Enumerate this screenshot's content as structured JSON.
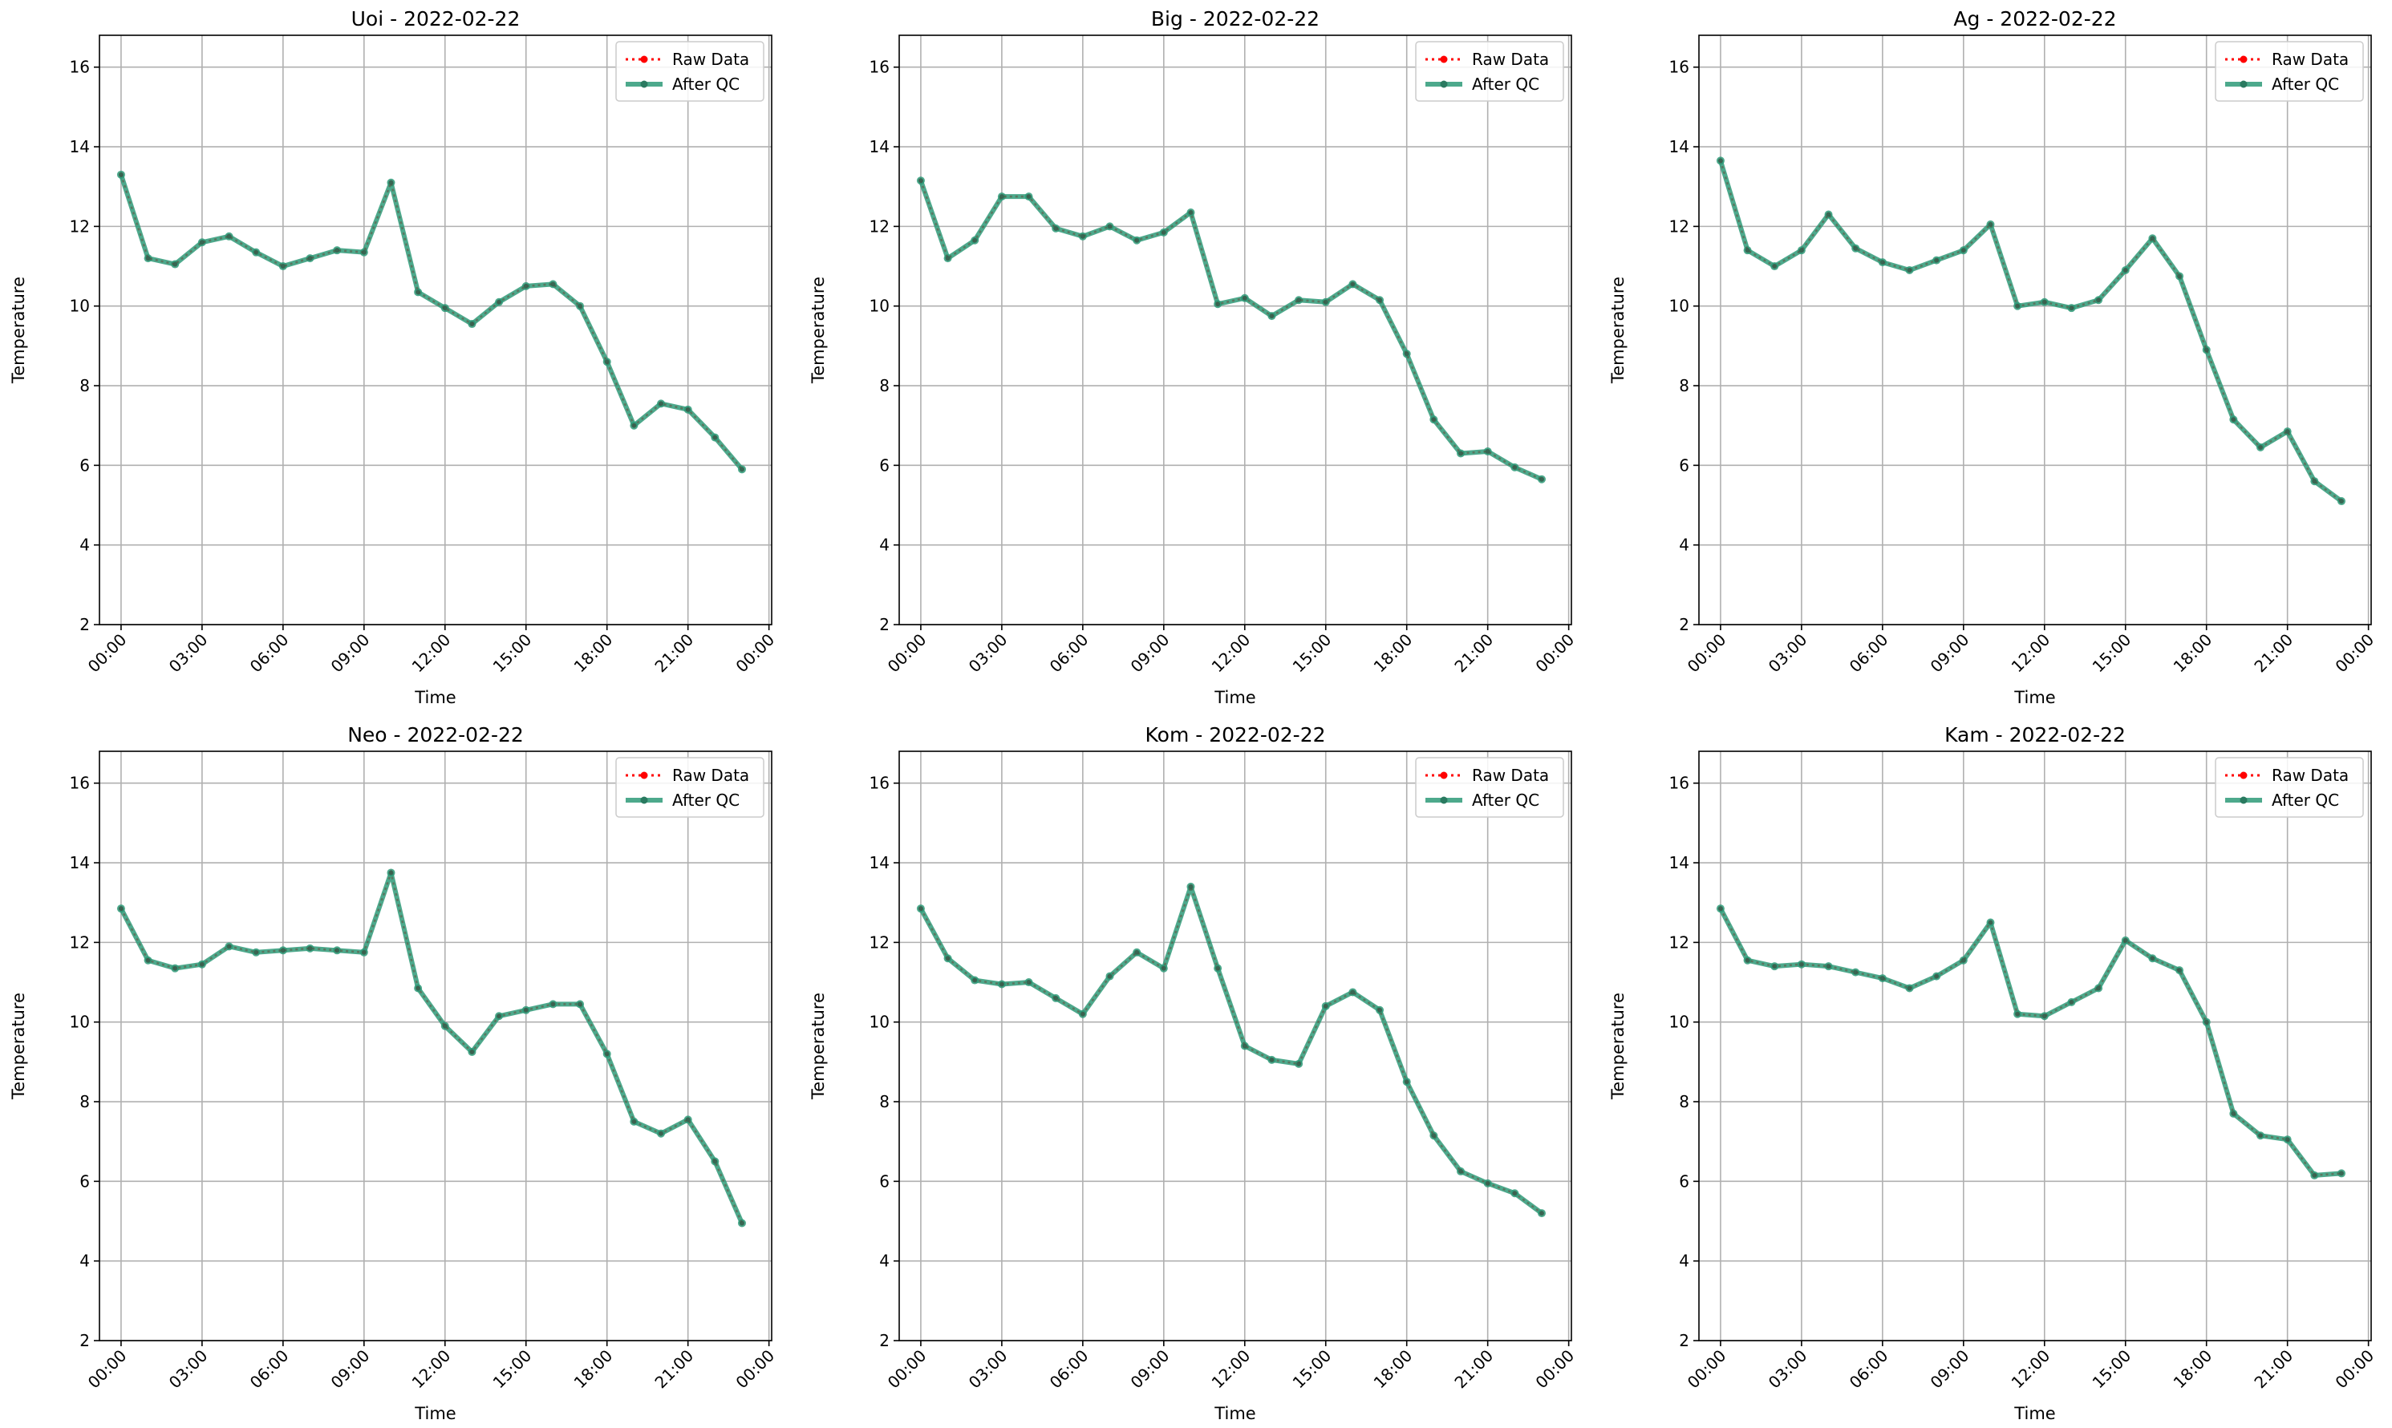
{
  "figure": {
    "background": "#ffffff"
  },
  "colors": {
    "raw": "#ff0000",
    "qc": "#2e9a78",
    "grid": "#b0b0b0",
    "axes": "#000000"
  },
  "chart_data": [
    {
      "type": "line",
      "title": "Uoi - 2022-02-22",
      "xlabel": "Time",
      "ylabel": "Temperature",
      "xticks": [
        "00:00",
        "03:00",
        "06:00",
        "09:00",
        "12:00",
        "15:00",
        "18:00",
        "21:00",
        "00:00"
      ],
      "yticks": [
        "2",
        "4",
        "6",
        "8",
        "10",
        "12",
        "14",
        "16"
      ],
      "ylim": [
        2,
        16.8
      ],
      "xlim_hours": [
        -0.8,
        24.1
      ],
      "grid": true,
      "legend": "top-right",
      "x_hours": [
        0,
        1,
        2,
        3,
        4,
        5,
        6,
        7,
        8,
        9,
        10,
        11,
        12,
        13,
        14,
        15,
        16,
        17,
        18,
        19,
        20,
        21,
        22,
        23
      ],
      "series": [
        {
          "name": "Raw Data",
          "style": "dotted",
          "values": [
            13.3,
            11.2,
            11.05,
            11.6,
            11.75,
            11.35,
            11.0,
            11.2,
            11.4,
            11.35,
            13.1,
            10.35,
            9.95,
            9.55,
            10.1,
            10.5,
            10.55,
            10.0,
            8.6,
            7.0,
            7.55,
            7.4,
            6.7,
            5.9
          ]
        },
        {
          "name": "After QC",
          "style": "solid",
          "values": [
            13.3,
            11.2,
            11.05,
            11.6,
            11.75,
            11.35,
            11.0,
            11.2,
            11.4,
            11.35,
            13.1,
            10.35,
            9.95,
            9.55,
            10.1,
            10.5,
            10.55,
            10.0,
            8.6,
            7.0,
            7.55,
            7.4,
            6.7,
            5.9
          ]
        }
      ]
    },
    {
      "type": "line",
      "title": "Big - 2022-02-22",
      "xlabel": "Time",
      "ylabel": "Temperature",
      "xticks": [
        "00:00",
        "03:00",
        "06:00",
        "09:00",
        "12:00",
        "15:00",
        "18:00",
        "21:00",
        "00:00"
      ],
      "yticks": [
        "2",
        "4",
        "6",
        "8",
        "10",
        "12",
        "14",
        "16"
      ],
      "ylim": [
        2,
        16.8
      ],
      "xlim_hours": [
        -0.8,
        24.1
      ],
      "grid": true,
      "legend": "top-right",
      "x_hours": [
        0,
        1,
        2,
        3,
        4,
        5,
        6,
        7,
        8,
        9,
        10,
        11,
        12,
        13,
        14,
        15,
        16,
        17,
        18,
        19,
        20,
        21,
        22,
        23
      ],
      "series": [
        {
          "name": "Raw Data",
          "style": "dotted",
          "values": [
            13.15,
            11.2,
            11.65,
            12.75,
            12.75,
            11.95,
            11.75,
            12.0,
            11.65,
            11.85,
            12.35,
            10.05,
            10.2,
            9.75,
            10.15,
            10.1,
            10.55,
            10.15,
            8.8,
            7.15,
            6.3,
            6.35,
            5.95,
            5.65
          ]
        },
        {
          "name": "After QC",
          "style": "solid",
          "values": [
            13.15,
            11.2,
            11.65,
            12.75,
            12.75,
            11.95,
            11.75,
            12.0,
            11.65,
            11.85,
            12.35,
            10.05,
            10.2,
            9.75,
            10.15,
            10.1,
            10.55,
            10.15,
            8.8,
            7.15,
            6.3,
            6.35,
            5.95,
            5.65
          ]
        }
      ]
    },
    {
      "type": "line",
      "title": "Ag - 2022-02-22",
      "xlabel": "Time",
      "ylabel": "Temperature",
      "xticks": [
        "00:00",
        "03:00",
        "06:00",
        "09:00",
        "12:00",
        "15:00",
        "18:00",
        "21:00",
        "00:00"
      ],
      "yticks": [
        "2",
        "4",
        "6",
        "8",
        "10",
        "12",
        "14",
        "16"
      ],
      "ylim": [
        2,
        16.8
      ],
      "xlim_hours": [
        -0.8,
        24.1
      ],
      "grid": true,
      "legend": "top-right",
      "x_hours": [
        0,
        1,
        2,
        3,
        4,
        5,
        6,
        7,
        8,
        9,
        10,
        11,
        12,
        13,
        14,
        15,
        16,
        17,
        18,
        19,
        20,
        21,
        22,
        23
      ],
      "series": [
        {
          "name": "Raw Data",
          "style": "dotted",
          "values": [
            13.65,
            11.4,
            11.0,
            11.4,
            12.3,
            11.45,
            11.1,
            10.9,
            11.15,
            11.4,
            12.05,
            10.0,
            10.1,
            9.95,
            10.15,
            10.9,
            11.7,
            10.75,
            8.9,
            7.15,
            6.45,
            6.85,
            5.6,
            5.1
          ]
        },
        {
          "name": "After QC",
          "style": "solid",
          "values": [
            13.65,
            11.4,
            11.0,
            11.4,
            12.3,
            11.45,
            11.1,
            10.9,
            11.15,
            11.4,
            12.05,
            10.0,
            10.1,
            9.95,
            10.15,
            10.9,
            11.7,
            10.75,
            8.9,
            7.15,
            6.45,
            6.85,
            5.6,
            5.1
          ]
        }
      ]
    },
    {
      "type": "line",
      "title": "Neo - 2022-02-22",
      "xlabel": "Time",
      "ylabel": "Temperature",
      "xticks": [
        "00:00",
        "03:00",
        "06:00",
        "09:00",
        "12:00",
        "15:00",
        "18:00",
        "21:00",
        "00:00"
      ],
      "yticks": [
        "2",
        "4",
        "6",
        "8",
        "10",
        "12",
        "14",
        "16"
      ],
      "ylim": [
        2,
        16.8
      ],
      "xlim_hours": [
        -0.8,
        24.1
      ],
      "grid": true,
      "legend": "top-right",
      "x_hours": [
        0,
        1,
        2,
        3,
        4,
        5,
        6,
        7,
        8,
        9,
        10,
        11,
        12,
        13,
        14,
        15,
        16,
        17,
        18,
        19,
        20,
        21,
        22,
        23
      ],
      "series": [
        {
          "name": "Raw Data",
          "style": "dotted",
          "values": [
            12.85,
            11.55,
            11.35,
            11.45,
            11.9,
            11.75,
            11.8,
            11.85,
            11.8,
            11.75,
            13.75,
            10.85,
            9.9,
            9.25,
            10.15,
            10.3,
            10.45,
            10.45,
            9.2,
            7.5,
            7.2,
            7.55,
            6.5,
            4.95
          ]
        },
        {
          "name": "After QC",
          "style": "solid",
          "values": [
            12.85,
            11.55,
            11.35,
            11.45,
            11.9,
            11.75,
            11.8,
            11.85,
            11.8,
            11.75,
            13.75,
            10.85,
            9.9,
            9.25,
            10.15,
            10.3,
            10.45,
            10.45,
            9.2,
            7.5,
            7.2,
            7.55,
            6.5,
            4.95
          ]
        }
      ]
    },
    {
      "type": "line",
      "title": "Kom - 2022-02-22",
      "xlabel": "Time",
      "ylabel": "Temperature",
      "xticks": [
        "00:00",
        "03:00",
        "06:00",
        "09:00",
        "12:00",
        "15:00",
        "18:00",
        "21:00",
        "00:00"
      ],
      "yticks": [
        "2",
        "4",
        "6",
        "8",
        "10",
        "12",
        "14",
        "16"
      ],
      "ylim": [
        2,
        16.8
      ],
      "xlim_hours": [
        -0.8,
        24.1
      ],
      "grid": true,
      "legend": "top-right",
      "x_hours": [
        0,
        1,
        2,
        3,
        4,
        5,
        6,
        7,
        8,
        9,
        10,
        11,
        12,
        13,
        14,
        15,
        16,
        17,
        18,
        19,
        20,
        21,
        22,
        23
      ],
      "series": [
        {
          "name": "Raw Data",
          "style": "dotted",
          "values": [
            12.85,
            11.6,
            11.05,
            10.95,
            11.0,
            10.6,
            10.2,
            11.15,
            11.75,
            11.35,
            13.4,
            11.35,
            9.4,
            9.05,
            8.95,
            10.4,
            10.75,
            10.3,
            8.5,
            7.15,
            6.25,
            5.95,
            5.7,
            5.2
          ]
        },
        {
          "name": "After QC",
          "style": "solid",
          "values": [
            12.85,
            11.6,
            11.05,
            10.95,
            11.0,
            10.6,
            10.2,
            11.15,
            11.75,
            11.35,
            13.4,
            11.35,
            9.4,
            9.05,
            8.95,
            10.4,
            10.75,
            10.3,
            8.5,
            7.15,
            6.25,
            5.95,
            5.7,
            5.2
          ]
        }
      ]
    },
    {
      "type": "line",
      "title": "Kam - 2022-02-22",
      "xlabel": "Time",
      "ylabel": "Temperature",
      "xticks": [
        "00:00",
        "03:00",
        "06:00",
        "09:00",
        "12:00",
        "15:00",
        "18:00",
        "21:00",
        "00:00"
      ],
      "yticks": [
        "2",
        "4",
        "6",
        "8",
        "10",
        "12",
        "14",
        "16"
      ],
      "ylim": [
        2,
        16.8
      ],
      "xlim_hours": [
        -0.8,
        24.1
      ],
      "grid": true,
      "legend": "top-right",
      "x_hours": [
        0,
        1,
        2,
        3,
        4,
        5,
        6,
        7,
        8,
        9,
        10,
        11,
        12,
        13,
        14,
        15,
        16,
        17,
        18,
        19,
        20,
        21,
        22,
        23
      ],
      "series": [
        {
          "name": "Raw Data",
          "style": "dotted",
          "values": [
            12.85,
            11.55,
            11.4,
            11.45,
            11.4,
            11.25,
            11.1,
            10.85,
            11.15,
            11.55,
            12.5,
            10.2,
            10.15,
            10.5,
            10.85,
            12.05,
            11.6,
            11.3,
            10.0,
            7.7,
            7.15,
            7.05,
            6.15,
            6.2
          ]
        },
        {
          "name": "After QC",
          "style": "solid",
          "values": [
            12.85,
            11.55,
            11.4,
            11.45,
            11.4,
            11.25,
            11.1,
            10.85,
            11.15,
            11.55,
            12.5,
            10.2,
            10.15,
            10.5,
            10.85,
            12.05,
            11.6,
            11.3,
            10.0,
            7.7,
            7.15,
            7.05,
            6.15,
            6.2
          ]
        }
      ]
    }
  ]
}
